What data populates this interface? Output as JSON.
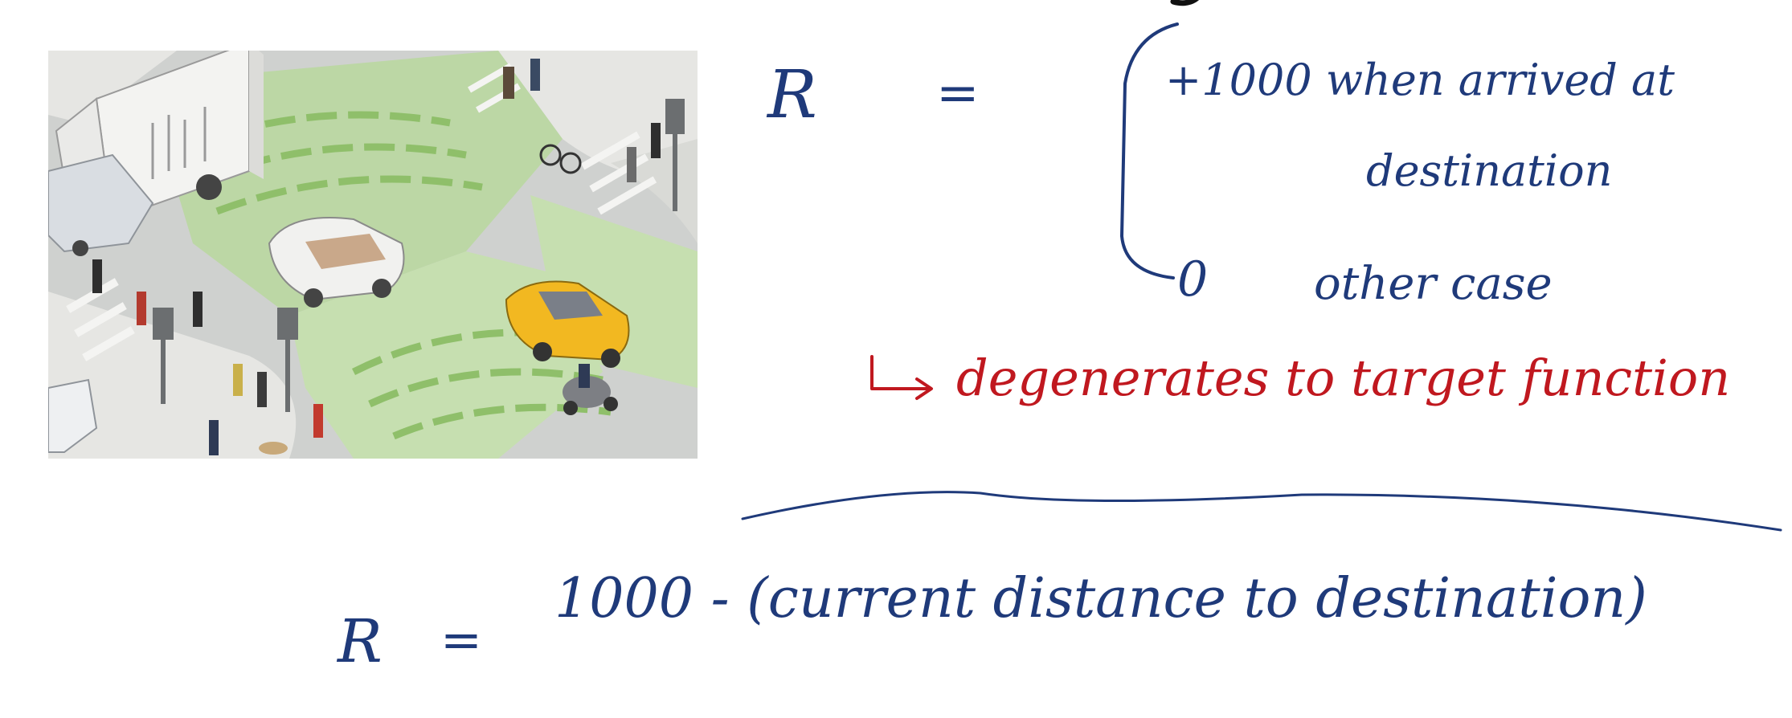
{
  "illustration": {
    "kind": "intersection-scene",
    "colors": {
      "road": "#cfd1cf",
      "zone": "#bcd7a5",
      "zone_dark": "#8fbf6a",
      "sidewalk": "#e6e6e3",
      "taxi": "#f2b821",
      "truck": "#f3f3f1"
    }
  },
  "slide": {
    "title_fragment": "g"
  },
  "reward_definition": {
    "symbol": "R",
    "equals": "=",
    "case_1": {
      "value_and_condition": "+1000 when arrived at",
      "condition_continued": "destination"
    },
    "case_2": {
      "value": "0",
      "condition": "other case"
    },
    "note": "degenerates to target function"
  },
  "alternative_reward": {
    "symbol": "R",
    "equals": "=",
    "expression": "1000 - (current distance to destination)"
  },
  "ink_colors": {
    "blue": "#1f3a7a",
    "red": "#c0181f"
  }
}
